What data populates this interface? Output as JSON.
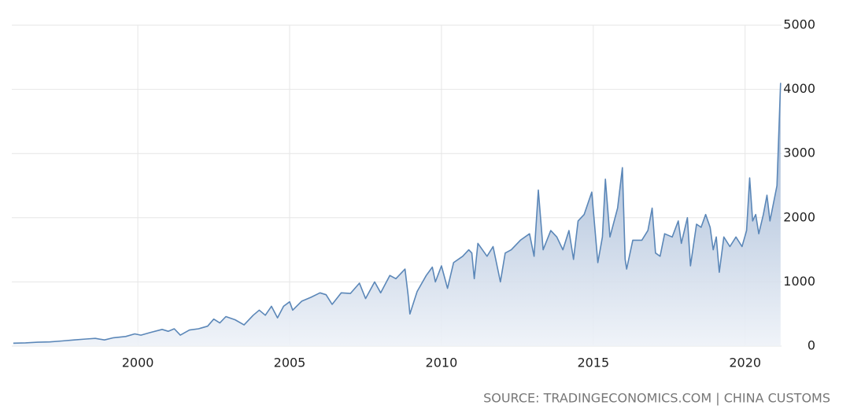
{
  "chart_data": {
    "type": "area",
    "source": "SOURCE: TRADINGECONOMICS.COM | CHINA CUSTOMS",
    "color": "#5b87b8",
    "grid": true,
    "xlim": [
      1995.85,
      2021.2
    ],
    "xticks": [
      2000,
      2005,
      2010,
      2015,
      2020
    ],
    "ylim": [
      0,
      5000
    ],
    "yticks": [
      0,
      1000,
      2000,
      3000,
      4000,
      5000
    ],
    "x": [
      1995.9,
      1996.3,
      1996.7,
      1997.1,
      1997.5,
      1997.9,
      1998.3,
      1998.6,
      1998.9,
      1999.2,
      1999.6,
      1999.9,
      2000.1,
      2000.4,
      2000.8,
      2001.0,
      2001.2,
      2001.4,
      2001.7,
      2002.0,
      2002.3,
      2002.5,
      2002.7,
      2002.9,
      2003.2,
      2003.5,
      2003.8,
      2004.0,
      2004.2,
      2004.4,
      2004.6,
      2004.8,
      2005.0,
      2005.1,
      2005.4,
      2005.7,
      2006.0,
      2006.2,
      2006.4,
      2006.7,
      2007.0,
      2007.3,
      2007.5,
      2007.8,
      2008.0,
      2008.3,
      2008.5,
      2008.8,
      2008.9,
      2008.96,
      2009.2,
      2009.5,
      2009.7,
      2009.8,
      2010.0,
      2010.2,
      2010.4,
      2010.7,
      2010.9,
      2011.0,
      2011.08,
      2011.2,
      2011.5,
      2011.7,
      2011.94,
      2012.1,
      2012.3,
      2012.6,
      2012.9,
      2013.05,
      2013.19,
      2013.35,
      2013.6,
      2013.8,
      2014.0,
      2014.2,
      2014.35,
      2014.5,
      2014.7,
      2014.95,
      2015.15,
      2015.3,
      2015.4,
      2015.55,
      2015.8,
      2015.96,
      2016.05,
      2016.1,
      2016.3,
      2016.6,
      2016.8,
      2016.94,
      2017.05,
      2017.2,
      2017.35,
      2017.6,
      2017.8,
      2017.9,
      2018.1,
      2018.2,
      2018.4,
      2018.55,
      2018.7,
      2018.85,
      2018.95,
      2019.05,
      2019.15,
      2019.3,
      2019.5,
      2019.7,
      2019.9,
      2020.05,
      2020.15,
      2020.25,
      2020.35,
      2020.45,
      2020.6,
      2020.72,
      2020.82,
      2021.05,
      2021.17
    ],
    "values": [
      45,
      50,
      60,
      65,
      80,
      95,
      110,
      120,
      95,
      130,
      150,
      190,
      170,
      210,
      260,
      230,
      270,
      170,
      250,
      270,
      310,
      420,
      360,
      460,
      410,
      330,
      480,
      560,
      480,
      620,
      440,
      620,
      690,
      560,
      700,
      760,
      830,
      800,
      650,
      830,
      820,
      980,
      740,
      1000,
      830,
      1100,
      1050,
      1200,
      800,
      500,
      850,
      1100,
      1230,
      1000,
      1250,
      900,
      1300,
      1400,
      1500,
      1450,
      1050,
      1600,
      1400,
      1550,
      1000,
      1450,
      1500,
      1650,
      1750,
      1400,
      2430,
      1500,
      1800,
      1700,
      1500,
      1800,
      1350,
      1950,
      2050,
      2400,
      1300,
      1700,
      2600,
      1700,
      2150,
      2780,
      1350,
      1200,
      1650,
      1650,
      1800,
      2150,
      1450,
      1400,
      1750,
      1700,
      1950,
      1600,
      2000,
      1250,
      1900,
      1850,
      2050,
      1850,
      1500,
      1700,
      1150,
      1700,
      1550,
      1700,
      1550,
      1800,
      2620,
      1950,
      2050,
      1750,
      2050,
      2350,
      1950,
      2500,
      4100
    ]
  }
}
